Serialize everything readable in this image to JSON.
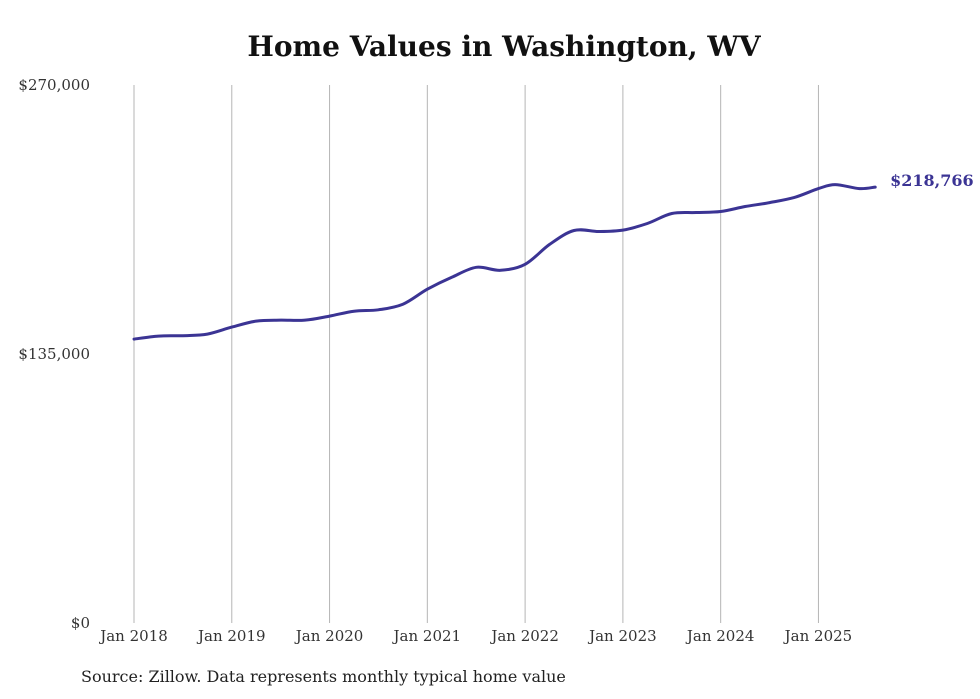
{
  "chart_data": {
    "type": "line",
    "title": "Home Values in Washington, WV",
    "xlabel": "",
    "ylabel": "",
    "ylim": [
      0,
      270000
    ],
    "y_ticks": [
      {
        "value": 0,
        "label": "$0"
      },
      {
        "value": 135000,
        "label": "$135,000"
      },
      {
        "value": 270000,
        "label": "$270,000"
      }
    ],
    "x_ticks": [
      {
        "value": 2018.0,
        "label": "Jan 2018"
      },
      {
        "value": 2019.0,
        "label": "Jan 2019"
      },
      {
        "value": 2020.0,
        "label": "Jan 2020"
      },
      {
        "value": 2021.0,
        "label": "Jan 2021"
      },
      {
        "value": 2022.0,
        "label": "Jan 2022"
      },
      {
        "value": 2023.0,
        "label": "Jan 2023"
      },
      {
        "value": 2024.0,
        "label": "Jan 2024"
      },
      {
        "value": 2025.0,
        "label": "Jan 2025"
      }
    ],
    "grid": {
      "vertical": true,
      "horizontal": false
    },
    "series": [
      {
        "color": "#3b3494",
        "points": [
          [
            2018.0,
            142500
          ],
          [
            2018.25,
            144000
          ],
          [
            2018.5,
            144200
          ],
          [
            2018.75,
            145000
          ],
          [
            2019.0,
            148500
          ],
          [
            2019.25,
            151500
          ],
          [
            2019.5,
            152000
          ],
          [
            2019.75,
            152000
          ],
          [
            2020.0,
            154000
          ],
          [
            2020.25,
            156500
          ],
          [
            2020.5,
            157200
          ],
          [
            2020.75,
            160000
          ],
          [
            2021.0,
            167500
          ],
          [
            2021.25,
            173500
          ],
          [
            2021.5,
            178500
          ],
          [
            2021.75,
            177000
          ],
          [
            2022.0,
            180000
          ],
          [
            2022.25,
            190000
          ],
          [
            2022.5,
            197000
          ],
          [
            2022.75,
            196500
          ],
          [
            2023.0,
            197200
          ],
          [
            2023.25,
            200500
          ],
          [
            2023.5,
            205500
          ],
          [
            2023.75,
            206000
          ],
          [
            2024.0,
            206500
          ],
          [
            2024.25,
            209000
          ],
          [
            2024.5,
            211000
          ],
          [
            2024.75,
            213500
          ],
          [
            2025.0,
            218000
          ],
          [
            2025.17,
            220000
          ],
          [
            2025.42,
            218000
          ],
          [
            2025.58,
            218766
          ]
        ],
        "end_label": "$218,766"
      }
    ]
  },
  "footer": {
    "source": "Source: Zillow. Data represents monthly typical home value"
  }
}
